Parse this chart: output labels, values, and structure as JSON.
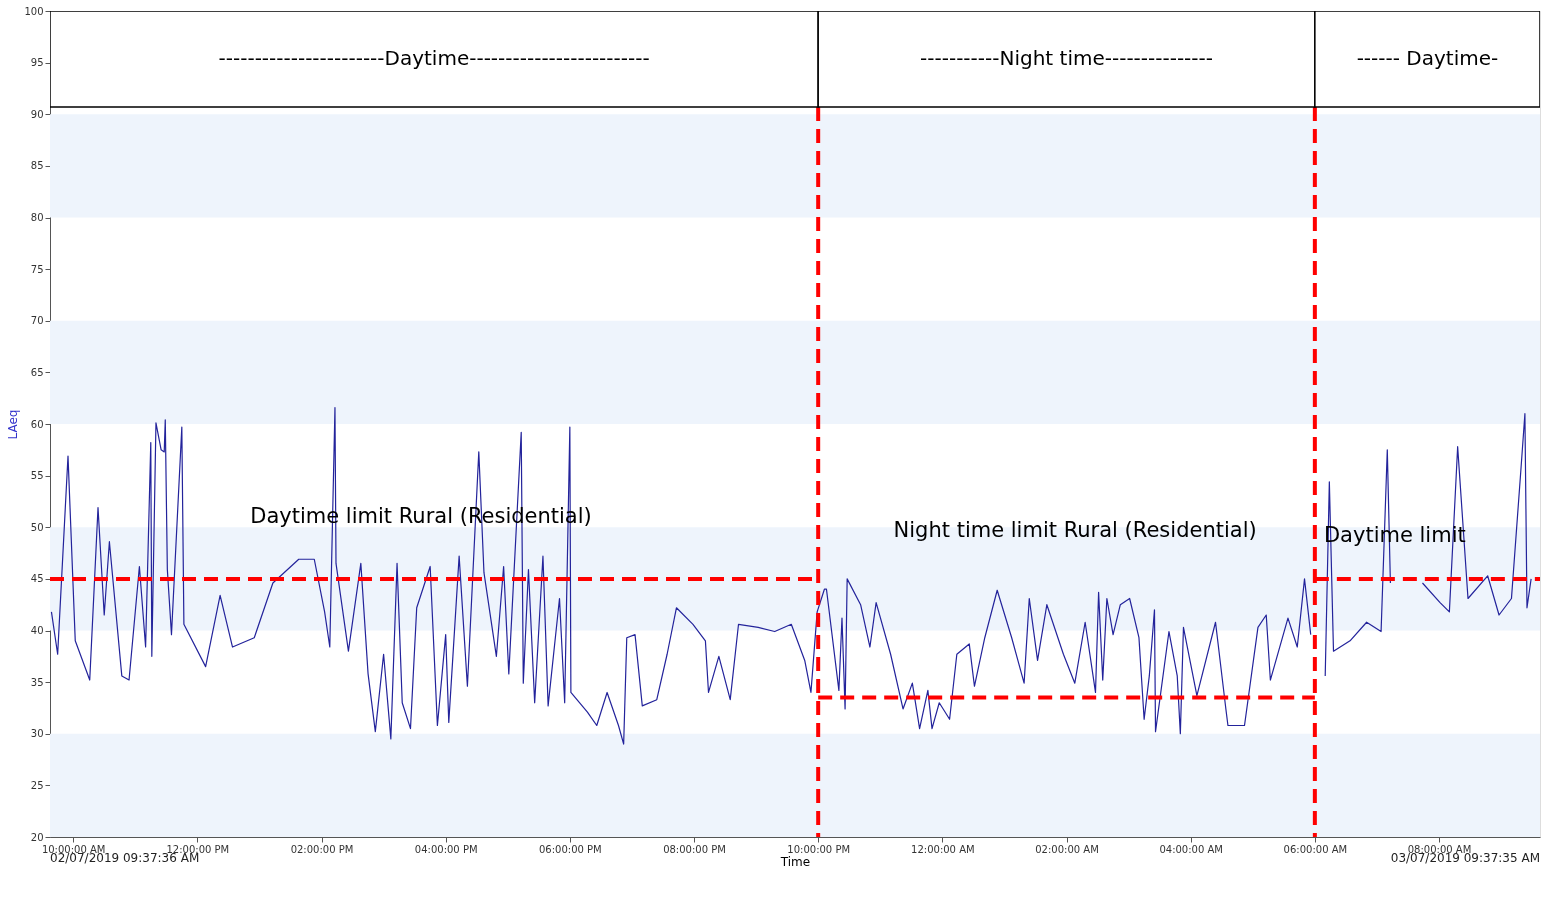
{
  "chart_data": {
    "type": "line",
    "xlabel": "Time",
    "ylabel": "LAeq",
    "xlim": [
      "2019-07-02T09:37:36",
      "2019-07-03T09:37:35"
    ],
    "ylim": [
      20,
      100
    ],
    "xticks": [
      {
        "value": "2019-07-02T10:00",
        "label": "10:00:00 AM"
      },
      {
        "value": "2019-07-02T12:00",
        "label": "12:00:00 PM"
      },
      {
        "value": "2019-07-02T14:00",
        "label": "02:00:00 PM"
      },
      {
        "value": "2019-07-02T16:00",
        "label": "04:00:00 PM"
      },
      {
        "value": "2019-07-02T18:00",
        "label": "06:00:00 PM"
      },
      {
        "value": "2019-07-02T20:00",
        "label": "08:00:00 PM"
      },
      {
        "value": "2019-07-02T22:00",
        "label": "10:00:00 PM"
      },
      {
        "value": "2019-07-03T00:00",
        "label": "12:00:00 AM"
      },
      {
        "value": "2019-07-03T02:00",
        "label": "02:00:00 AM"
      },
      {
        "value": "2019-07-03T04:00",
        "label": "04:00:00 AM"
      },
      {
        "value": "2019-07-03T06:00",
        "label": "06:00:00 AM"
      },
      {
        "value": "2019-07-03T08:00",
        "label": "08:00:00 AM"
      }
    ],
    "yticks": [
      20,
      25,
      30,
      35,
      40,
      45,
      50,
      55,
      60,
      65,
      70,
      75,
      80,
      85,
      90,
      95,
      100
    ],
    "grid": false,
    "marker": "none",
    "series": [
      {
        "color": "#23239b",
        "line_style": "solid",
        "x": [
          "2019-07-02T09:39",
          "2019-07-02T09:45",
          "2019-07-02T09:55",
          "2019-07-02T10:02",
          "2019-07-02T10:16",
          "2019-07-02T10:24",
          "2019-07-02T10:30",
          "2019-07-02T10:35",
          "2019-07-02T10:47",
          "2019-07-02T10:54",
          "2019-07-02T11:04",
          "2019-07-02T11:10",
          "2019-07-02T11:15",
          "2019-07-02T11:16",
          "2019-07-02T11:20",
          "2019-07-02T11:25",
          "2019-07-02T11:28",
          "2019-07-02T11:29",
          "2019-07-02T11:31",
          "2019-07-02T11:35",
          "2019-07-02T11:45",
          "2019-07-02T11:47",
          "2019-07-02T12:08",
          "2019-07-02T12:22",
          "2019-07-02T12:34",
          "2019-07-02T12:55",
          "2019-07-02T13:13",
          "2019-07-02T13:38",
          "2019-07-02T13:53",
          "2019-07-02T14:03",
          "2019-07-02T14:08",
          "2019-07-02T14:13",
          "2019-07-02T14:14",
          "2019-07-02T14:26",
          "2019-07-02T14:38",
          "2019-07-02T14:45",
          "2019-07-02T14:52",
          "2019-07-02T15:00",
          "2019-07-02T15:07",
          "2019-07-02T15:13",
          "2019-07-02T15:18",
          "2019-07-02T15:26",
          "2019-07-02T15:32",
          "2019-07-02T15:45",
          "2019-07-02T15:52",
          "2019-07-02T16:00",
          "2019-07-02T16:03",
          "2019-07-02T16:13",
          "2019-07-02T16:21",
          "2019-07-02T16:32",
          "2019-07-02T16:37",
          "2019-07-02T16:49",
          "2019-07-02T16:56",
          "2019-07-02T17:01",
          "2019-07-02T17:13",
          "2019-07-02T17:15",
          "2019-07-02T17:20",
          "2019-07-02T17:26",
          "2019-07-02T17:34",
          "2019-07-02T17:39",
          "2019-07-02T17:50",
          "2019-07-02T17:55",
          "2019-07-02T18:00",
          "2019-07-02T18:01",
          "2019-07-02T18:17",
          "2019-07-02T18:26",
          "2019-07-02T18:36",
          "2019-07-02T18:47",
          "2019-07-02T18:52",
          "2019-07-02T18:55",
          "2019-07-02T19:03",
          "2019-07-02T19:10",
          "2019-07-02T19:24",
          "2019-07-02T19:34",
          "2019-07-02T19:43",
          "2019-07-02T19:59",
          "2019-07-02T20:11",
          "2019-07-02T20:14",
          "2019-07-02T20:24",
          "2019-07-02T20:35",
          "2019-07-02T20:43",
          "2019-07-02T21:02",
          "2019-07-02T21:18",
          "2019-07-02T21:34",
          "2019-07-02T21:47",
          "2019-07-02T21:53",
          "2019-07-02T21:59",
          "2019-07-02T22:06",
          "2019-07-02T22:08",
          "2019-07-02T22:20",
          "2019-07-02T22:23",
          "2019-07-02T22:26",
          "2019-07-02T22:28",
          "2019-07-02T22:41",
          "2019-07-02T22:50",
          "2019-07-02T22:56",
          "2019-07-02T23:10",
          "2019-07-02T23:22",
          "2019-07-02T23:31",
          "2019-07-02T23:38",
          "2019-07-02T23:46",
          "2019-07-02T23:50",
          "2019-07-02T23:57",
          "2019-07-03T00:07",
          "2019-07-03T00:14",
          "2019-07-03T00:26",
          "2019-07-03T00:31",
          "2019-07-03T00:41",
          "2019-07-03T00:53",
          "2019-07-03T01:07",
          "2019-07-03T01:19",
          "2019-07-03T01:24",
          "2019-07-03T01:32",
          "2019-07-03T01:41",
          "2019-07-03T01:57",
          "2019-07-03T02:08",
          "2019-07-03T02:18",
          "2019-07-03T02:28",
          "2019-07-03T02:31",
          "2019-07-03T02:35",
          "2019-07-03T02:39",
          "2019-07-03T02:45",
          "2019-07-03T02:52",
          "2019-07-03T03:01",
          "2019-07-03T03:10",
          "2019-07-03T03:15",
          "2019-07-03T03:20",
          "2019-07-03T03:25",
          "2019-07-03T03:26",
          "2019-07-03T03:39",
          "2019-07-03T03:47",
          "2019-07-03T03:50",
          "2019-07-03T03:53",
          "2019-07-03T04:06",
          "2019-07-03T04:24",
          "2019-07-03T04:34",
          "2019-07-03T04:36",
          "2019-07-03T04:52",
          "2019-07-03T05:05",
          "2019-07-03T05:13",
          "2019-07-03T05:17",
          "2019-07-03T05:34",
          "2019-07-03T05:43",
          "2019-07-03T05:50",
          "2019-07-03T05:56",
          "2019-07-03T06:05",
          "2019-07-03T06:10",
          "2019-07-03T06:14",
          "2019-07-03T06:18",
          "2019-07-03T06:34",
          "2019-07-03T06:50",
          "2019-07-03T07:04",
          "2019-07-03T07:10",
          "2019-07-03T07:13",
          "2019-07-03T07:28",
          "2019-07-03T07:44",
          "2019-07-03T08:01",
          "2019-07-03T08:10",
          "2019-07-03T08:18",
          "2019-07-03T08:28",
          "2019-07-03T08:47",
          "2019-07-03T08:58",
          "2019-07-03T09:10",
          "2019-07-03T09:19",
          "2019-07-03T09:23",
          "2019-07-03T09:25",
          "2019-07-03T09:29"
        ],
        "values": [
          41.8,
          37.7,
          56.9,
          39.0,
          35.2,
          51.9,
          41.5,
          48.6,
          35.6,
          35.2,
          46.2,
          38.4,
          58.2,
          37.5,
          60.1,
          57.5,
          57.3,
          60.4,
          45.9,
          39.6,
          59.7,
          40.6,
          36.5,
          43.4,
          38.4,
          39.3,
          44.6,
          46.9,
          46.9,
          41.8,
          38.4,
          61.6,
          46.5,
          38.0,
          46.5,
          35.8,
          30.2,
          37.7,
          29.5,
          46.5,
          33.0,
          30.5,
          42.2,
          46.2,
          30.8,
          39.6,
          31.1,
          47.2,
          34.6,
          57.3,
          45.6,
          37.5,
          46.2,
          35.8,
          59.2,
          34.9,
          45.9,
          33.0,
          47.2,
          32.7,
          43.1,
          33.0,
          59.7,
          34.0,
          32.1,
          30.8,
          34.0,
          30.8,
          29.0,
          39.3,
          39.6,
          32.7,
          33.3,
          37.7,
          42.2,
          40.6,
          39.0,
          34.0,
          37.5,
          33.3,
          40.6,
          40.3,
          39.9,
          40.6,
          37.1,
          34.0,
          41.8,
          44.0,
          44.0,
          34.2,
          41.2,
          32.4,
          45.0,
          42.5,
          38.4,
          42.7,
          37.7,
          32.4,
          34.9,
          30.5,
          34.2,
          30.5,
          33.0,
          31.4,
          37.7,
          38.7,
          34.6,
          39.3,
          43.9,
          39.3,
          34.9,
          43.1,
          37.1,
          42.5,
          37.7,
          34.9,
          40.8,
          34.0,
          43.7,
          35.2,
          43.1,
          39.6,
          42.5,
          43.1,
          39.3,
          31.4,
          35.6,
          42.0,
          30.2,
          39.9,
          35.6,
          30.0,
          40.3,
          33.7,
          40.8,
          32.4,
          30.8,
          30.8,
          40.3,
          41.5,
          35.2,
          41.2,
          38.4,
          45.0,
          39.6,
          null,
          35.6,
          54.4,
          38.0,
          39.0,
          40.8,
          39.9,
          57.5,
          44.6,
          null,
          44.6,
          42.7,
          41.8,
          57.8,
          43.1,
          45.3,
          41.5,
          43.1,
          55.4,
          61.0,
          42.2,
          45.0
        ]
      },
      {
        "color": "#ff0000",
        "line_style": "dashed",
        "x": [
          "2019-07-02T09:37:36",
          "2019-07-02T22:00"
        ],
        "values": [
          45,
          45
        ]
      },
      {
        "color": "#ff0000",
        "line_style": "dashed",
        "x": [
          "2019-07-02T22:00",
          "2019-07-03T06:00"
        ],
        "values": [
          33.5,
          33.5
        ]
      },
      {
        "color": "#ff0000",
        "line_style": "dashed",
        "x": [
          "2019-07-03T06:00",
          "2019-07-03T09:37:35"
        ],
        "values": [
          45,
          45
        ]
      }
    ],
    "ref_lines": [
      {
        "axis": "x",
        "value": "2019-07-02T22:00",
        "color": "#ff0000",
        "line_style": "dashed"
      },
      {
        "axis": "x",
        "value": "2019-07-03T06:00",
        "color": "#ff0000",
        "line_style": "dashed"
      }
    ],
    "bands": [
      {
        "axis": "y",
        "from": 20,
        "to": 30,
        "color": "#eef4fc"
      },
      {
        "axis": "y",
        "from": 40,
        "to": 50,
        "color": "#eef4fc"
      },
      {
        "axis": "y",
        "from": 60,
        "to": 70,
        "color": "#eef4fc"
      },
      {
        "axis": "y",
        "from": 80,
        "to": 90,
        "color": "#eef4fc"
      },
      {
        "axis": "x",
        "from": "2019-07-02T09:37:36",
        "to": "2019-07-02T22:00",
        "label": "-----------------------Daytime-------------------------",
        "color": "#ffffff"
      },
      {
        "axis": "x",
        "from": "2019-07-02T22:00",
        "to": "2019-07-03T06:00",
        "label": "-----------Night time---------------",
        "color": "#ffffff"
      },
      {
        "axis": "x",
        "from": "2019-07-03T06:00",
        "to": "2019-07-03T09:37:35",
        "label": "------ Daytime-",
        "color": "#ffffff"
      }
    ],
    "annotations": [
      "Daytime limit Rural (Residential)",
      "Night time limit Rural (Residential)",
      "Daytime limit",
      "02/07/2019 09:37:36 AM",
      "03/07/2019 09:37:35 AM"
    ]
  }
}
